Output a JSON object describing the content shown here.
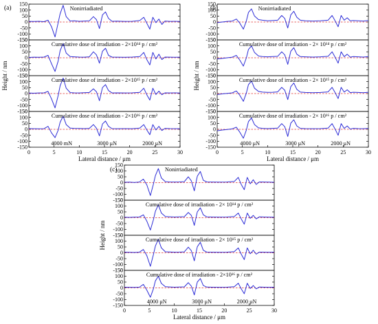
{
  "chart_data": [
    {
      "type": "line",
      "panel_label": "(a)",
      "xlabel": "Lateral distance / μm",
      "ylabel": "Height / nm",
      "xlim": [
        0,
        30
      ],
      "ylim": [
        -150,
        150
      ],
      "x_ticks": [
        "0",
        "5",
        "10",
        "15",
        "20",
        "25",
        "30"
      ],
      "y_ticks": [
        "150",
        "100",
        "50",
        "0",
        "-50",
        "-100",
        "-150"
      ],
      "load_labels": [
        "4000 mN",
        "3000 μN",
        "2000 μN"
      ],
      "strips": [
        {
          "title": "Nonirriadiated",
          "x": [
            0,
            1,
            2,
            3,
            3.8,
            4.5,
            5.2,
            5.8,
            6.2,
            6.8,
            7.4,
            8.2,
            9,
            10,
            11,
            12,
            12.8,
            13.4,
            14,
            14.6,
            15.2,
            15.8,
            16.5,
            17.5,
            19,
            20.5,
            22,
            22.8,
            23.4,
            24,
            24.6,
            25.2,
            25.8,
            26.4,
            27,
            28,
            29,
            30
          ],
          "y": [
            5,
            4,
            6,
            3,
            15,
            -40,
            -125,
            -10,
            70,
            140,
            45,
            8,
            10,
            6,
            8,
            10,
            45,
            20,
            -55,
            60,
            85,
            30,
            6,
            7,
            5,
            6,
            12,
            40,
            -10,
            -60,
            40,
            -5,
            25,
            -20,
            8,
            5,
            6,
            4
          ]
        },
        {
          "title": "Cumulative dose of irradiation - 2×10¹⁴ p / cm²",
          "x": [
            0,
            1,
            2,
            3,
            3.8,
            4.5,
            5.2,
            5.8,
            6.2,
            6.8,
            7.4,
            8.2,
            9,
            10,
            11,
            12,
            12.8,
            13.4,
            14,
            14.6,
            15.2,
            15.8,
            16.5,
            17.5,
            19,
            20.5,
            22,
            22.8,
            23.4,
            24,
            24.6,
            25.2,
            25.8,
            26.4,
            27,
            28,
            29,
            30
          ],
          "y": [
            3,
            5,
            4,
            6,
            20,
            -50,
            -115,
            -30,
            60,
            120,
            40,
            10,
            8,
            6,
            5,
            8,
            50,
            25,
            -45,
            55,
            80,
            20,
            6,
            5,
            4,
            6,
            10,
            45,
            -15,
            -60,
            45,
            -10,
            30,
            -15,
            6,
            5,
            4,
            5
          ]
        },
        {
          "title": "Cumulative dose of irradiation - 2×10¹⁵ p / cm²",
          "x": [
            0,
            1,
            2,
            3,
            3.8,
            4.5,
            5.2,
            5.8,
            6.2,
            6.8,
            7.4,
            8.2,
            9,
            10,
            11,
            12,
            12.8,
            13.4,
            14,
            14.6,
            15.2,
            15.8,
            16.5,
            17.5,
            19,
            20.5,
            22,
            22.8,
            23.4,
            24,
            24.6,
            25.2,
            25.8,
            26.4,
            27,
            28,
            29,
            30
          ],
          "y": [
            4,
            3,
            5,
            6,
            18,
            -45,
            -120,
            -20,
            65,
            130,
            45,
            8,
            6,
            5,
            7,
            9,
            40,
            15,
            -60,
            50,
            75,
            25,
            5,
            6,
            5,
            6,
            10,
            45,
            -10,
            -55,
            45,
            -8,
            20,
            -10,
            6,
            5,
            6,
            4
          ]
        },
        {
          "title": "Cumulative dose of irradiation - 2×10¹⁶ p / cm²",
          "x": [
            0,
            1,
            2,
            3,
            3.8,
            4.5,
            5.2,
            5.8,
            6.2,
            6.8,
            7.4,
            8.2,
            9,
            10,
            11,
            12,
            12.8,
            13.4,
            14,
            14.6,
            15.2,
            15.8,
            16.5,
            17.5,
            19,
            20.5,
            22,
            22.8,
            23.4,
            24,
            24.6,
            25.2,
            25.8,
            26.4,
            27,
            28,
            29,
            30
          ],
          "y": [
            6,
            5,
            4,
            5,
            25,
            -30,
            -70,
            -10,
            60,
            110,
            40,
            10,
            8,
            7,
            6,
            8,
            40,
            10,
            -55,
            45,
            70,
            25,
            6,
            5,
            6,
            5,
            10,
            40,
            -5,
            -45,
            40,
            -5,
            25,
            -10,
            8,
            6,
            5,
            5
          ]
        }
      ]
    },
    {
      "type": "line",
      "panel_label": "(b)",
      "xlabel": "Lateral distance / μm",
      "ylabel": "Height / nm",
      "xlim": [
        0,
        30
      ],
      "ylim": [
        -150,
        150
      ],
      "x_ticks": [
        "0",
        "5",
        "10",
        "15",
        "20",
        "25",
        "30"
      ],
      "y_ticks": [
        "150",
        "100",
        "50",
        "0",
        "-50",
        "-100",
        "-150"
      ],
      "load_labels": [
        "4000 μN",
        "3000 μN",
        "2000 μN"
      ],
      "strips": [
        {
          "title": "Nonirriadiated",
          "x": [
            0,
            1,
            2,
            3,
            3.8,
            4.5,
            5.2,
            5.8,
            6.2,
            6.8,
            7.4,
            8.2,
            9,
            10,
            11,
            12,
            12.8,
            13.4,
            14,
            14.6,
            15.2,
            15.8,
            16.5,
            17.5,
            19,
            20.5,
            22,
            22.8,
            23.4,
            24,
            24.6,
            25.2,
            25.8,
            26.4,
            27,
            28,
            29,
            30
          ],
          "y": [
            -5,
            0,
            5,
            8,
            25,
            -10,
            -60,
            10,
            80,
            110,
            50,
            20,
            15,
            10,
            12,
            15,
            55,
            30,
            -50,
            60,
            90,
            40,
            15,
            10,
            8,
            10,
            15,
            55,
            10,
            -40,
            55,
            15,
            35,
            10,
            12,
            10,
            8,
            12
          ]
        },
        {
          "title": "Cumulative dose of irradiation - 2× 10¹⁴ p / cm²",
          "x": [
            0,
            1,
            2,
            3,
            3.8,
            4.5,
            5.2,
            5.8,
            6.2,
            6.8,
            7.4,
            8.2,
            9,
            10,
            11,
            12,
            12.8,
            13.4,
            14,
            14.6,
            15.2,
            15.8,
            16.5,
            17.5,
            19,
            20.5,
            22,
            22.8,
            23.4,
            24,
            24.6,
            25.2,
            25.8,
            26.4,
            27,
            28,
            29,
            30
          ],
          "y": [
            -10,
            -5,
            0,
            5,
            20,
            -20,
            -70,
            0,
            70,
            100,
            45,
            15,
            10,
            8,
            10,
            12,
            50,
            25,
            -55,
            55,
            85,
            30,
            10,
            8,
            6,
            8,
            12,
            50,
            5,
            -45,
            50,
            10,
            30,
            5,
            10,
            8,
            6,
            10
          ]
        },
        {
          "title": "Cumulative dose of irradiation - 2× 10¹⁵ p / cm²",
          "x": [
            0,
            1,
            2,
            3,
            3.8,
            4.5,
            5.2,
            5.8,
            6.2,
            6.8,
            7.4,
            8.2,
            9,
            10,
            11,
            12,
            12.8,
            13.4,
            14,
            14.6,
            15.2,
            15.8,
            16.5,
            17.5,
            19,
            20.5,
            22,
            22.8,
            23.4,
            24,
            24.6,
            25.2,
            25.8,
            26.4,
            27,
            28,
            29,
            30
          ],
          "y": [
            -8,
            -3,
            2,
            6,
            22,
            -15,
            -65,
            5,
            75,
            105,
            45,
            18,
            12,
            10,
            11,
            14,
            52,
            28,
            -50,
            58,
            88,
            35,
            12,
            9,
            7,
            9,
            14,
            52,
            8,
            -42,
            52,
            12,
            32,
            8,
            11,
            9,
            7,
            11
          ]
        },
        {
          "title": "Cumulative dose of irradiation - 2× 10¹⁶ p / cm²",
          "x": [
            0,
            1,
            2,
            3,
            3.8,
            4.5,
            5.2,
            5.8,
            6.2,
            6.8,
            7.4,
            8.2,
            9,
            10,
            11,
            12,
            12.8,
            13.4,
            14,
            14.6,
            15.2,
            15.8,
            16.5,
            17.5,
            19,
            20.5,
            22,
            22.8,
            23.4,
            24,
            24.6,
            25.2,
            25.8,
            26.4,
            27,
            28,
            29,
            30
          ],
          "y": [
            -12,
            -6,
            -2,
            4,
            18,
            -25,
            -75,
            -5,
            65,
            95,
            40,
            12,
            8,
            6,
            8,
            10,
            48,
            22,
            -60,
            52,
            80,
            28,
            8,
            6,
            5,
            6,
            10,
            48,
            2,
            -50,
            48,
            8,
            28,
            2,
            8,
            6,
            5,
            8
          ]
        }
      ]
    },
    {
      "type": "line",
      "panel_label": "(c)",
      "xlabel": "Lateral distance / μm",
      "ylabel": "Height / nm",
      "xlim": [
        0,
        30
      ],
      "ylim": [
        -150,
        150
      ],
      "x_ticks": [
        "0",
        "5",
        "10",
        "15",
        "20",
        "25",
        "30"
      ],
      "y_ticks": [
        "150",
        "100",
        "50",
        "0",
        "-50",
        "-100",
        "-150"
      ],
      "load_labels": [
        "4000 μN",
        "3000 μN",
        "2000 μN"
      ],
      "strips": [
        {
          "title": "Nonirriadiated",
          "x": [
            0,
            1,
            2,
            3,
            3.8,
            4.5,
            5.2,
            5.8,
            6.2,
            6.8,
            7.4,
            8.2,
            9,
            10,
            11,
            12,
            12.8,
            13.4,
            14,
            14.6,
            15.2,
            15.8,
            16.5,
            17.5,
            19,
            20.5,
            22,
            22.8,
            23.4,
            24,
            24.6,
            25.2,
            25.8,
            26.4,
            27,
            28,
            29,
            30
          ],
          "y": [
            3,
            4,
            2,
            5,
            30,
            -20,
            -110,
            -15,
            60,
            120,
            40,
            8,
            6,
            5,
            6,
            8,
            50,
            15,
            -70,
            55,
            95,
            20,
            6,
            5,
            4,
            5,
            10,
            45,
            -15,
            -60,
            45,
            -10,
            25,
            -15,
            6,
            5,
            4,
            3
          ]
        },
        {
          "title": "Cumulative dose of irradiation - 2× 10¹⁴ p / cm²",
          "x": [
            0,
            1,
            2,
            3,
            3.8,
            4.5,
            5.2,
            5.8,
            6.2,
            6.8,
            7.4,
            8.2,
            9,
            10,
            11,
            12,
            12.8,
            13.4,
            14,
            14.6,
            15.2,
            15.8,
            16.5,
            17.5,
            19,
            20.5,
            22,
            22.8,
            23.4,
            24,
            24.6,
            25.2,
            25.8,
            26.4,
            27,
            28,
            29,
            30
          ],
          "y": [
            4,
            3,
            5,
            6,
            25,
            -30,
            -105,
            -20,
            55,
            110,
            40,
            10,
            8,
            6,
            7,
            9,
            45,
            20,
            -65,
            50,
            85,
            25,
            7,
            6,
            5,
            6,
            10,
            40,
            -10,
            -55,
            40,
            -5,
            20,
            -10,
            7,
            6,
            5,
            4
          ]
        },
        {
          "title": "Cumulative dose of irradiation - 2× 10¹⁵ p / cm²",
          "x": [
            0,
            1,
            2,
            3,
            3.8,
            4.5,
            5.2,
            5.8,
            6.2,
            6.8,
            7.4,
            8.2,
            9,
            10,
            11,
            12,
            12.8,
            13.4,
            14,
            14.6,
            15.2,
            15.8,
            16.5,
            17.5,
            19,
            20.5,
            22,
            22.8,
            23.4,
            24,
            24.6,
            25.2,
            25.8,
            26.4,
            27,
            28,
            29,
            30
          ],
          "y": [
            5,
            4,
            3,
            5,
            28,
            -25,
            -115,
            -18,
            58,
            115,
            42,
            9,
            7,
            5,
            6,
            8,
            48,
            18,
            -68,
            52,
            90,
            22,
            6,
            5,
            4,
            5,
            10,
            42,
            -12,
            -58,
            42,
            -8,
            22,
            -12,
            6,
            5,
            4,
            5
          ]
        },
        {
          "title": "Cumulative dose of irradiation - 2×10¹⁶ p / cm²",
          "x": [
            0,
            1,
            2,
            3,
            3.8,
            4.5,
            5.2,
            5.8,
            6.2,
            6.8,
            7.4,
            8.2,
            9,
            10,
            11,
            12,
            12.8,
            13.4,
            14,
            14.6,
            15.2,
            15.8,
            16.5,
            17.5,
            19,
            20.5,
            22,
            22.8,
            23.4,
            24,
            24.6,
            25.2,
            25.8,
            26.4,
            27,
            28,
            29,
            30
          ],
          "y": [
            6,
            5,
            4,
            6,
            30,
            -20,
            -80,
            -10,
            60,
            100,
            38,
            10,
            8,
            6,
            7,
            9,
            45,
            15,
            -60,
            50,
            80,
            20,
            7,
            6,
            5,
            6,
            10,
            40,
            -8,
            -50,
            40,
            -5,
            20,
            -8,
            7,
            6,
            5,
            6
          ]
        }
      ]
    }
  ],
  "colors": {
    "curve": "#2b2bd6",
    "zero_line": "#e03030",
    "axis": "#000000"
  }
}
